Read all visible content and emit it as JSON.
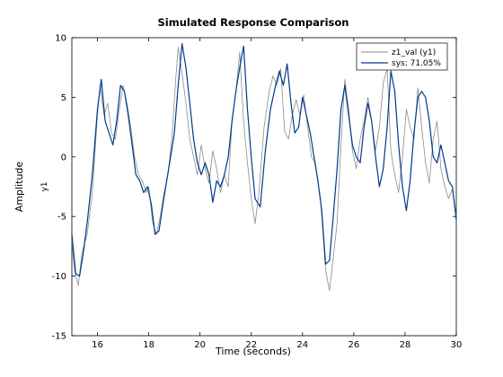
{
  "chart_data": {
    "type": "line",
    "title": "Simulated Response Comparison",
    "xlabel": "Time (seconds)",
    "ylabel": "Amplitude",
    "channel_label": "y1",
    "xlim": [
      15,
      30
    ],
    "ylim": [
      -15,
      10
    ],
    "xticks": [
      16,
      18,
      20,
      22,
      24,
      26,
      28,
      30
    ],
    "yticks": [
      -15,
      -10,
      -5,
      0,
      5,
      10
    ],
    "grid": false,
    "legend_position": "top-right",
    "series": [
      {
        "name": "z1_val (y1)",
        "color": "#8c8c8c",
        "x": [
          15,
          15.1,
          15.25,
          15.4,
          15.6,
          15.8,
          16,
          16.1,
          16.25,
          16.4,
          16.55,
          16.7,
          16.85,
          17,
          17.15,
          17.3,
          17.45,
          17.6,
          17.75,
          17.9,
          18.0,
          18.15,
          18.3,
          18.45,
          18.6,
          18.75,
          18.9,
          19.05,
          19.15,
          19.3,
          19.45,
          19.6,
          19.75,
          19.9,
          20.05,
          20.2,
          20.35,
          20.5,
          20.65,
          20.8,
          20.95,
          21.1,
          21.25,
          21.4,
          21.55,
          21.7,
          21.85,
          22.0,
          22.15,
          22.3,
          22.5,
          22.7,
          22.85,
          23.0,
          23.15,
          23.3,
          23.45,
          23.6,
          23.75,
          23.9,
          24.05,
          24.2,
          24.35,
          24.5,
          24.7,
          24.9,
          25.05,
          25.2,
          25.35,
          25.5,
          25.65,
          25.8,
          25.95,
          26.1,
          26.25,
          26.4,
          26.55,
          26.7,
          26.85,
          27.0,
          27.15,
          27.3,
          27.45,
          27.6,
          27.75,
          27.9,
          28.05,
          28.2,
          28.35,
          28.5,
          28.65,
          28.8,
          28.95,
          29.1,
          29.25,
          29.4,
          29.55,
          29.7,
          29.85,
          30
        ],
        "values": [
          -7,
          -9.5,
          -10.8,
          -8,
          -6.5,
          -3,
          3.5,
          6,
          3.5,
          4.5,
          2,
          1.5,
          4,
          6,
          4.5,
          2.5,
          0,
          -1.5,
          -2,
          -3,
          -2.5,
          -5.5,
          -6.5,
          -5,
          -3,
          -1.5,
          1.5,
          6.5,
          9.2,
          7,
          4.5,
          1.5,
          0,
          -1.5,
          1,
          -1,
          -2.2,
          0.5,
          -1,
          -3,
          -1.5,
          -2.5,
          3,
          5.5,
          8.8,
          3,
          -0.5,
          -3.5,
          -5.6,
          -3,
          2.5,
          5.5,
          6.8,
          6,
          7.4,
          2.2,
          1.5,
          3.5,
          4.8,
          3.5,
          5.2,
          2.5,
          0,
          -0.5,
          -3.5,
          -9.5,
          -11.2,
          -8.5,
          -5.5,
          1,
          6.5,
          4,
          0.5,
          -1,
          1.5,
          3,
          5,
          3,
          0.5,
          2.5,
          6.2,
          7.4,
          0.5,
          -1.5,
          -3,
          0,
          4,
          2.5,
          1.5,
          5.8,
          2.5,
          -0.5,
          -2.2,
          1.5,
          3,
          -1,
          -2.5,
          -3.5,
          -2.7,
          -5
        ]
      },
      {
        "name": "sys: 71.05%",
        "color": "#003a8c",
        "x": [
          15,
          15.15,
          15.3,
          15.45,
          15.6,
          15.8,
          16,
          16.15,
          16.3,
          16.45,
          16.6,
          16.75,
          16.9,
          17.05,
          17.2,
          17.35,
          17.5,
          17.65,
          17.8,
          17.95,
          18.1,
          18.25,
          18.4,
          18.55,
          18.7,
          18.85,
          19.0,
          19.15,
          19.3,
          19.45,
          19.6,
          19.75,
          19.9,
          20.05,
          20.2,
          20.35,
          20.5,
          20.65,
          20.8,
          20.95,
          21.1,
          21.25,
          21.4,
          21.55,
          21.7,
          21.85,
          22.0,
          22.15,
          22.35,
          22.55,
          22.75,
          22.95,
          23.1,
          23.25,
          23.4,
          23.55,
          23.7,
          23.85,
          24.0,
          24.15,
          24.3,
          24.45,
          24.6,
          24.75,
          24.9,
          25.05,
          25.2,
          25.35,
          25.5,
          25.65,
          25.8,
          25.95,
          26.1,
          26.25,
          26.4,
          26.55,
          26.7,
          26.85,
          27.0,
          27.15,
          27.3,
          27.45,
          27.6,
          27.75,
          27.9,
          28.05,
          28.2,
          28.35,
          28.5,
          28.65,
          28.8,
          28.95,
          29.1,
          29.25,
          29.4,
          29.55,
          29.7,
          29.85,
          30
        ],
        "values": [
          -6.5,
          -9.8,
          -10,
          -8,
          -5.5,
          -1.5,
          4,
          6.5,
          3,
          2,
          1,
          3,
          6,
          5.5,
          3.5,
          1,
          -1.5,
          -2,
          -3,
          -2.5,
          -4,
          -6.5,
          -6.2,
          -4,
          -2,
          0,
          2,
          6,
          9.5,
          7.5,
          4.5,
          1.5,
          -0.5,
          -1.5,
          -0.5,
          -1.5,
          -3.8,
          -2,
          -2.5,
          -1.5,
          0,
          3,
          5.5,
          7.5,
          9.3,
          4,
          0,
          -3.5,
          -4.2,
          0.5,
          4,
          6,
          7.2,
          6,
          7.8,
          4.5,
          2,
          2.5,
          5,
          3.5,
          2,
          0,
          -2,
          -4.5,
          -9,
          -8.7,
          -5,
          -1,
          4,
          6,
          3.5,
          1,
          0,
          -0.5,
          2.5,
          4.5,
          3,
          0,
          -2.5,
          -1,
          2.5,
          7.2,
          5.5,
          1,
          -2.5,
          -4.5,
          -2,
          2,
          5,
          5.5,
          5,
          3,
          0,
          -0.5,
          1,
          -0.5,
          -2,
          -2.5,
          -5.3
        ]
      }
    ]
  }
}
